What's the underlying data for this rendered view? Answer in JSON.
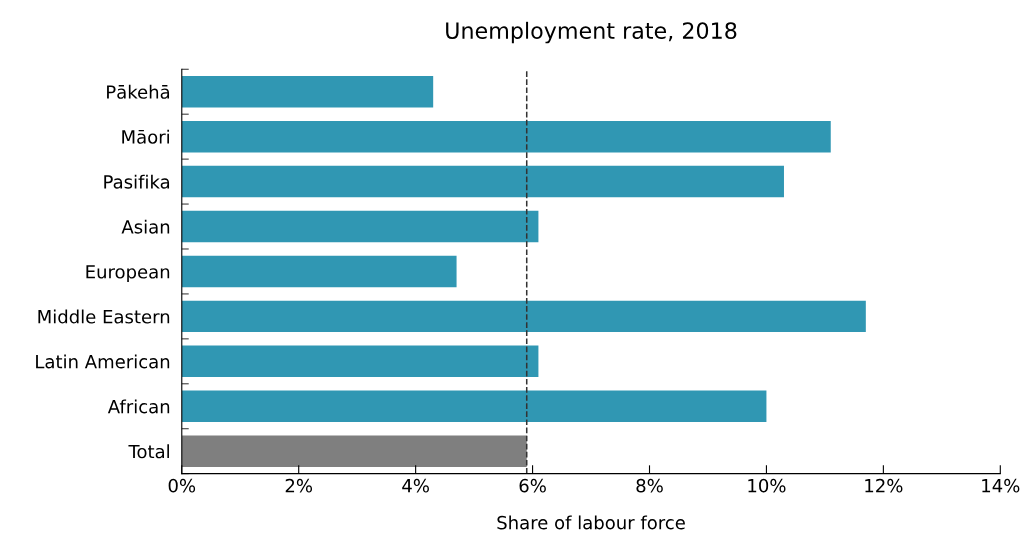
{
  "chart_data": {
    "type": "bar",
    "orientation": "horizontal",
    "title": "Unemployment rate, 2018",
    "xlabel": "Share of labour force",
    "categories": [
      "Pākehā",
      "Māori",
      "Pasifika",
      "Asian",
      "European",
      "Middle Eastern",
      "Latin American",
      "African",
      "Total"
    ],
    "values": [
      4.3,
      11.1,
      10.3,
      6.1,
      4.7,
      11.7,
      6.1,
      10.0,
      5.9
    ],
    "colors": [
      "#3097b3",
      "#3097b3",
      "#3097b3",
      "#3097b3",
      "#3097b3",
      "#3097b3",
      "#3097b3",
      "#3097b3",
      "#7f7f7f"
    ],
    "xlim": [
      0,
      14
    ],
    "xticks": [
      {
        "value": 0,
        "label": "0%"
      },
      {
        "value": 2,
        "label": "2%"
      },
      {
        "value": 4,
        "label": "4%"
      },
      {
        "value": 6,
        "label": "6%"
      },
      {
        "value": 8,
        "label": "8%"
      },
      {
        "value": 10,
        "label": "10%"
      },
      {
        "value": 12,
        "label": "12%"
      },
      {
        "value": 14,
        "label": "14%"
      }
    ],
    "ref_lines": [
      {
        "axis": "x",
        "value": 5.9,
        "label": null,
        "color": "#333333",
        "line_style": "dashed"
      }
    ],
    "grid": false,
    "legend": false
  }
}
